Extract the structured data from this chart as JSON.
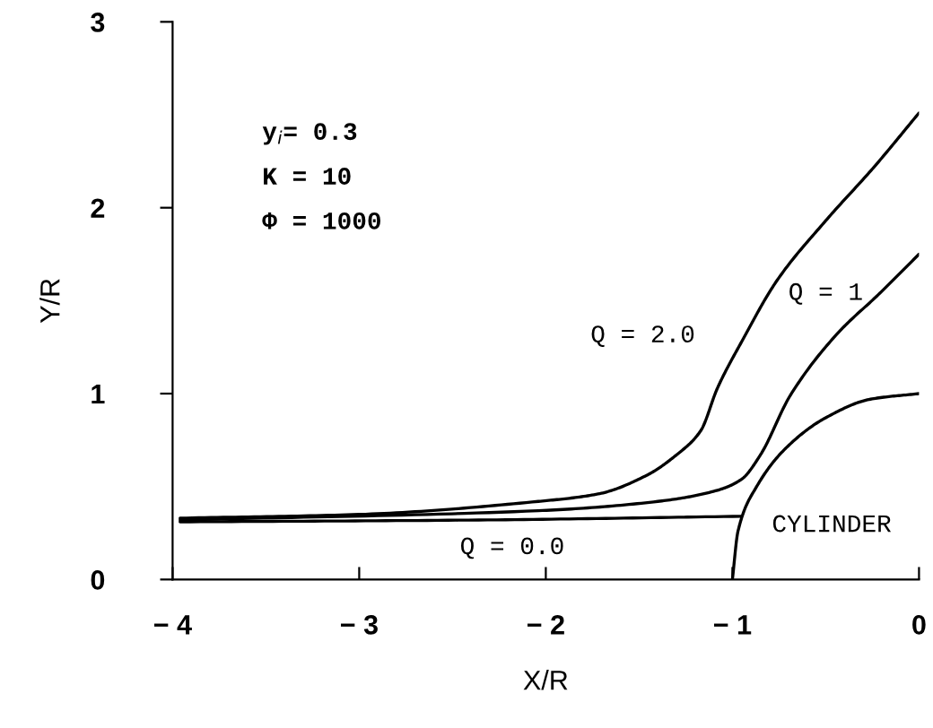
{
  "chart_data": {
    "type": "line",
    "xlabel": "X/R",
    "ylabel": "Y/R",
    "xlim": [
      -4,
      0
    ],
    "ylim": [
      0,
      3
    ],
    "xticks": [
      {
        "value": -4,
        "label": "− 4"
      },
      {
        "value": -3,
        "label": "− 3"
      },
      {
        "value": -2,
        "label": "− 2"
      },
      {
        "value": -1,
        "label": "− 1"
      },
      0
    ],
    "yticks": [
      0,
      1,
      2,
      3
    ],
    "grid": false,
    "legend": false,
    "marker": "none",
    "line_style": "solid",
    "series": [
      {
        "color": "#000000",
        "x": [
          -3.96,
          -3.0,
          -2.04,
          -1.72,
          -1.46,
          -1.3,
          -1.17,
          -1.08,
          -0.95,
          -0.76,
          -0.5,
          -0.24,
          0.0
        ],
        "values": [
          0.33,
          0.35,
          0.42,
          0.46,
          0.56,
          0.67,
          0.8,
          1.03,
          1.28,
          1.61,
          1.93,
          2.22,
          2.51
        ]
      },
      {
        "color": "#000000",
        "x": [
          -3.96,
          -2.04,
          -1.4,
          -1.08,
          -0.95,
          -0.85,
          -0.69,
          -0.44,
          -0.21,
          0.0
        ],
        "values": [
          0.32,
          0.37,
          0.42,
          0.48,
          0.54,
          0.67,
          0.99,
          1.32,
          1.54,
          1.75
        ]
      },
      {
        "color": "#000000",
        "x": [
          -3.96,
          -2.36,
          -0.95
        ],
        "values": [
          0.31,
          0.32,
          0.34
        ]
      },
      {
        "color": "#000000",
        "x": [
          -1.0,
          -0.97,
          -0.87,
          -0.71,
          -0.5,
          -0.26,
          0.0
        ],
        "values": [
          0.0,
          0.26,
          0.5,
          0.71,
          0.87,
          0.97,
          1.0
        ]
      }
    ],
    "annotations": [
      "y$_{i}$= 0.3",
      "K = 10",
      "Φ = 1000",
      "Q = 2.0",
      "Q = 1",
      "Q = 0.0",
      "CYLINDER"
    ]
  }
}
